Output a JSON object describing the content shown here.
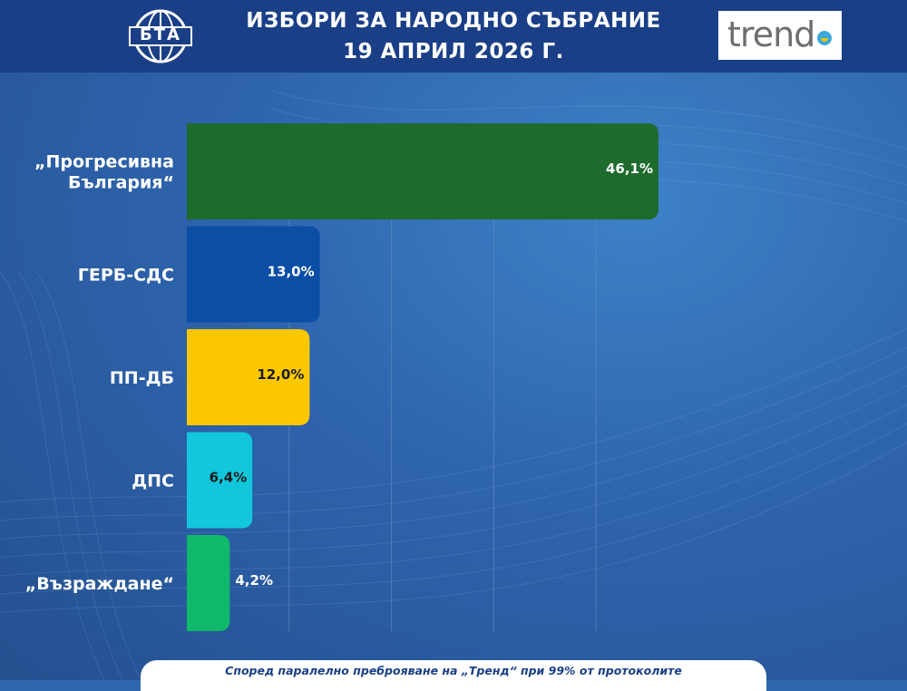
{
  "header": {
    "title_line1": "ИЗБОРИ ЗА НАРОДНО СЪБРАНИЕ",
    "title_line2": "19 АПРИЛ 2026 Г.",
    "left_logo_text": "БТА",
    "right_logo_text": "trend"
  },
  "colors": {
    "header_bg": "#1a3f87",
    "grid": "#5f8ac0"
  },
  "chart_data": {
    "type": "bar",
    "orientation": "horizontal",
    "categories": [
      "„Прогресивна България“",
      "ГЕРБ-СДС",
      "ПП-ДБ",
      "ДПС",
      "„Възраждане“"
    ],
    "category_lines": [
      [
        "„Прогресивна",
        "България“"
      ],
      [
        "ГЕРБ-СДС"
      ],
      [
        "ПП-ДБ"
      ],
      [
        "ДПС"
      ],
      [
        "„Възраждане“"
      ]
    ],
    "values": [
      46.1,
      13.0,
      12.0,
      6.4,
      4.2
    ],
    "value_labels": [
      "46,1%",
      "13,0%",
      "12,0%",
      "6,4%",
      "4,2%"
    ],
    "bar_colors": [
      "#1f6b2e",
      "#0b4ea6",
      "#fbc800",
      "#12c6dc",
      "#10b96a"
    ],
    "label_colors": [
      "#ffffff",
      "#ffffff",
      "#1a1a1a",
      "#1a1a1a",
      "#ffffff"
    ],
    "xlim": [
      0,
      50
    ],
    "grid": true,
    "gridlines": [
      10,
      20,
      30,
      40
    ],
    "title": "",
    "xlabel": "",
    "ylabel": ""
  },
  "footer": {
    "note": "Според паралелно преброяване на „Тренд“ при 99% от протоколите"
  }
}
